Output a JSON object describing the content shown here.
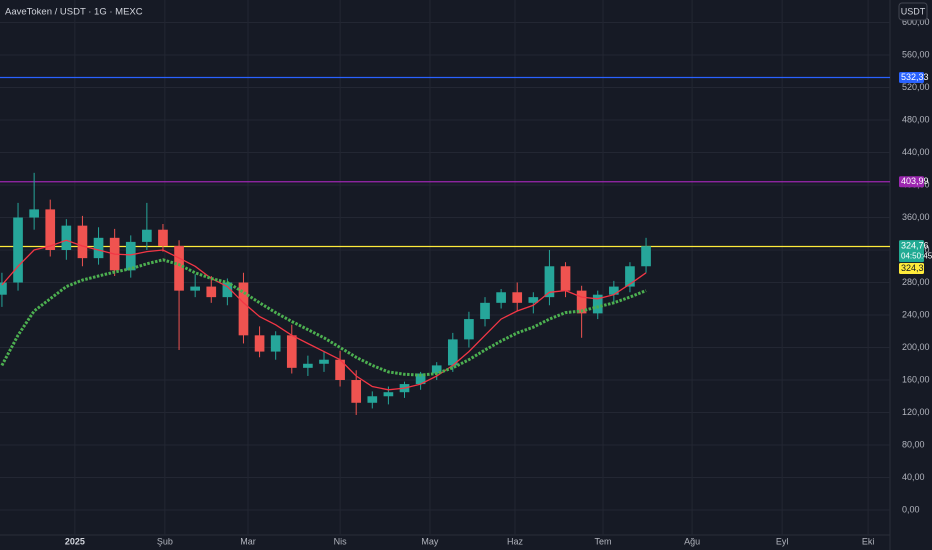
{
  "chart_data": {
    "type": "candlestick",
    "title": "AaveToken / USDT · 1G · MEXC",
    "currency_button": "USDT",
    "up_color": "#26a69a",
    "down_color": "#ef5350",
    "open": [
      265,
      280,
      360,
      370,
      320,
      350,
      310,
      335,
      295,
      330,
      345,
      325,
      270,
      275,
      262,
      280,
      215,
      195,
      215,
      175,
      180,
      185,
      160,
      132,
      140,
      145,
      155,
      168,
      178,
      210,
      235,
      255,
      268,
      255,
      262,
      300,
      270,
      242,
      265,
      275,
      300
    ],
    "high": [
      292,
      378,
      415,
      382,
      358,
      362,
      348,
      346,
      338,
      378,
      352,
      332,
      290,
      288,
      285,
      292,
      226,
      220,
      228,
      190,
      195,
      196,
      172,
      146,
      152,
      158,
      170,
      182,
      218,
      244,
      262,
      272,
      280,
      268,
      320,
      305,
      276,
      270,
      282,
      305,
      335
    ],
    "low": [
      250,
      270,
      345,
      312,
      308,
      300,
      302,
      288,
      286,
      320,
      318,
      197,
      262,
      255,
      252,
      205,
      188,
      185,
      168,
      165,
      170,
      152,
      117,
      125,
      130,
      138,
      148,
      160,
      170,
      200,
      226,
      248,
      245,
      242,
      252,
      262,
      212,
      235,
      255,
      268,
      292
    ],
    "close": [
      280,
      360,
      370,
      320,
      350,
      310,
      335,
      295,
      330,
      345,
      325,
      270,
      275,
      262,
      280,
      215,
      195,
      215,
      175,
      180,
      185,
      160,
      132,
      140,
      145,
      155,
      168,
      178,
      210,
      235,
      255,
      268,
      255,
      262,
      300,
      270,
      242,
      265,
      275,
      300,
      324.76
    ],
    "overlays": [
      {
        "color": "#f23645",
        "style": "solid",
        "values": [
          277,
          300,
          320,
          325,
          332,
          325,
          320,
          315,
          314,
          318,
          320,
          310,
          300,
          285,
          275,
          255,
          238,
          228,
          215,
          205,
          195,
          185,
          165,
          152,
          148,
          150,
          155,
          165,
          178,
          195,
          215,
          235,
          245,
          252,
          268,
          270,
          262,
          260,
          265,
          278,
          292
        ]
      },
      {
        "color": "#4caf50",
        "style": "dotted",
        "values": [
          178,
          215,
          245,
          260,
          275,
          283,
          288,
          293,
          297,
          303,
          308,
          302,
          292,
          285,
          280,
          268,
          255,
          243,
          232,
          222,
          212,
          200,
          188,
          178,
          170,
          167,
          166,
          168,
          175,
          185,
          197,
          208,
          218,
          225,
          235,
          243,
          245,
          250,
          255,
          262,
          270
        ]
      }
    ],
    "levels": [
      {
        "value": 532.33,
        "label": "532,33",
        "color": "#2962ff"
      },
      {
        "value": 403.99,
        "label": "403,99",
        "color": "#9c27b0"
      },
      {
        "value": 324.31,
        "label": "324,31",
        "color": "#ffeb3b"
      }
    ],
    "last_price_label": "324,76",
    "countdown": "04:50:45",
    "last_price_color": "#22ab94",
    "xlim": [
      -0.12,
      55.15
    ],
    "xticks": [
      {
        "value": 4.53,
        "label": "2025"
      },
      {
        "value": 10.12,
        "label": "Şub"
      },
      {
        "value": 15.28,
        "label": "Mar"
      },
      {
        "value": 21.0,
        "label": "Nis"
      },
      {
        "value": 26.58,
        "label": "May"
      },
      {
        "value": 31.86,
        "label": "Haz"
      },
      {
        "value": 37.33,
        "label": "Tem"
      },
      {
        "value": 42.86,
        "label": "Ağu"
      },
      {
        "value": 48.45,
        "label": "Eyl"
      },
      {
        "value": 53.79,
        "label": "Eki"
      }
    ],
    "ylim": [
      -49.2,
      627.7
    ],
    "yticks": [
      {
        "value": 0,
        "label": "0,00"
      },
      {
        "value": 40,
        "label": "40,00"
      },
      {
        "value": 80,
        "label": "80,00"
      },
      {
        "value": 120,
        "label": "120,00"
      },
      {
        "value": 160,
        "label": "160,00"
      },
      {
        "value": 200,
        "label": "200,00"
      },
      {
        "value": 240,
        "label": "240,00"
      },
      {
        "value": 280,
        "label": "280,00"
      },
      {
        "value": 320,
        "label": "320,00"
      },
      {
        "value": 360,
        "label": "360,00"
      },
      {
        "value": 400,
        "label": "400,00"
      },
      {
        "value": 440,
        "label": "440,00"
      },
      {
        "value": 480,
        "label": "480,00"
      },
      {
        "value": 520,
        "label": "520,00"
      },
      {
        "value": 560,
        "label": "560,00"
      },
      {
        "value": 600,
        "label": "600,00"
      }
    ],
    "grid": true
  }
}
